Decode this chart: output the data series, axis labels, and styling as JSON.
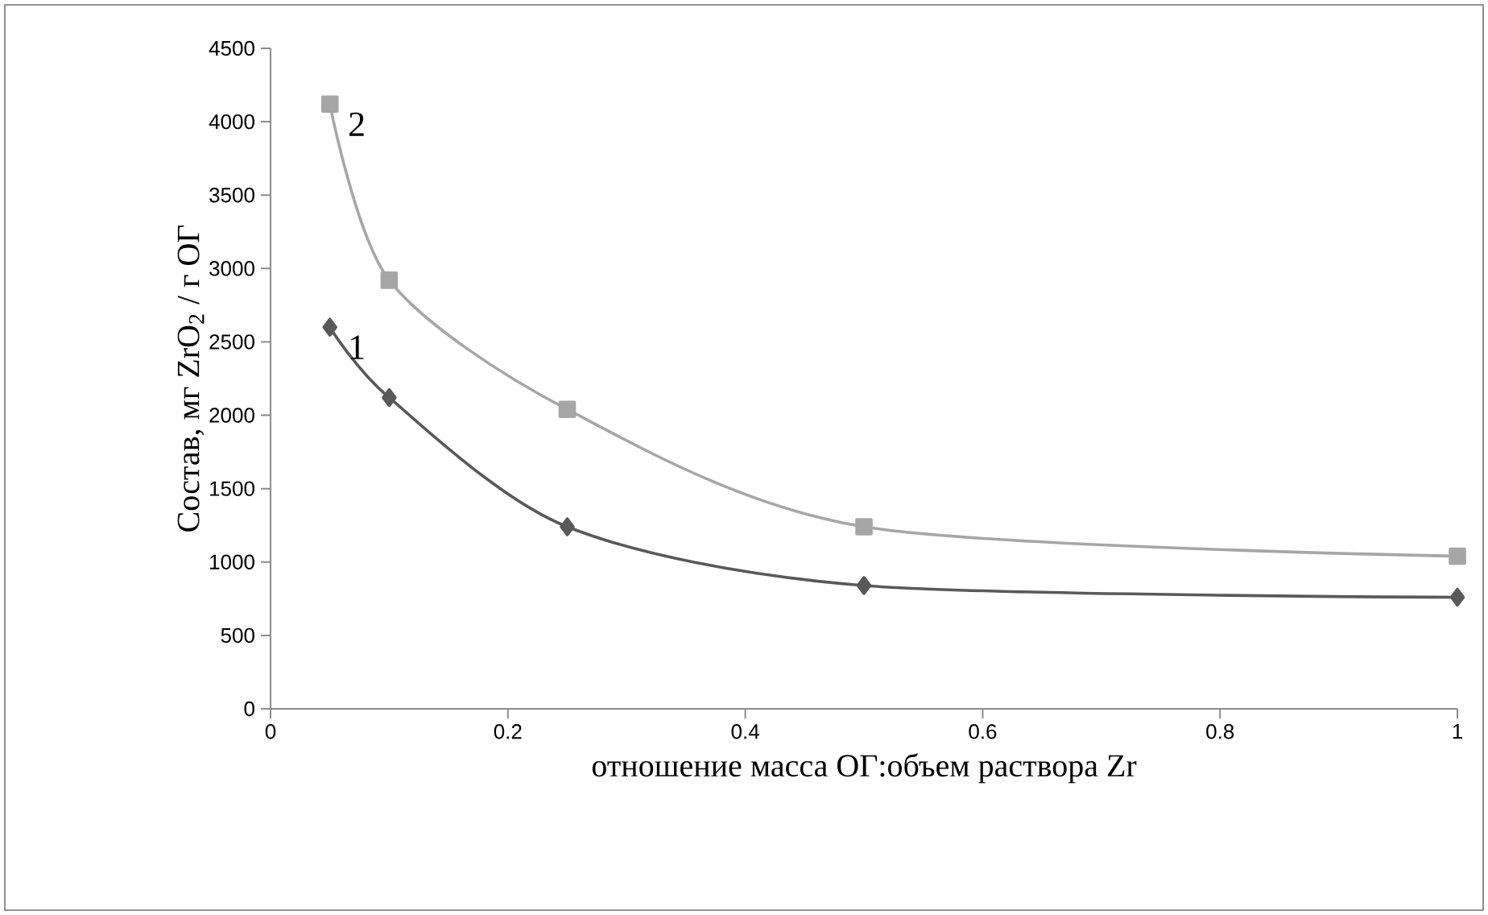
{
  "chart_data": {
    "type": "line",
    "xlabel": "отношение масса ОГ:объем раствора Zr",
    "ylabel": "Состав, мг ZrO$_{2}$ / г ОГ",
    "xlim": [
      0,
      1
    ],
    "xticks": [
      0,
      0.2,
      0.4,
      0.6,
      0.8,
      1
    ],
    "ylim": [
      0,
      4500
    ],
    "yticks": [
      0,
      500,
      1000,
      1500,
      2000,
      2500,
      3000,
      3500,
      4000,
      4500
    ],
    "grid": false,
    "series": [
      {
        "name": "1",
        "color": "#595959",
        "marker": "diamond",
        "x": [
          0.05,
          0.1,
          0.25,
          0.5,
          1
        ],
        "values": [
          2600,
          2120,
          1240,
          840,
          760
        ]
      },
      {
        "name": "2",
        "color": "#a6a6a6",
        "marker": "square",
        "x": [
          0.05,
          0.1,
          0.25,
          0.5,
          1
        ],
        "values": [
          4120,
          2920,
          2040,
          1240,
          1040
        ]
      }
    ]
  }
}
